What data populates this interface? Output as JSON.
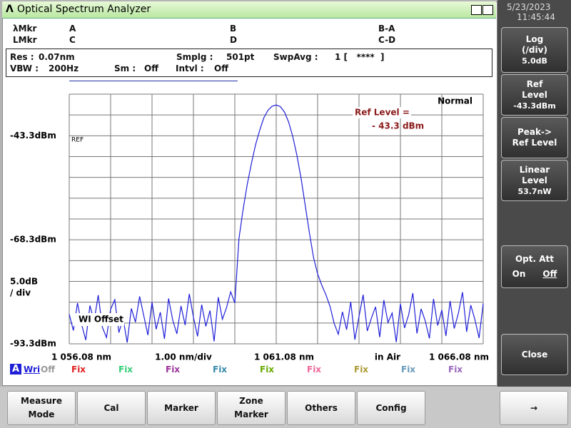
{
  "title_bar": {
    "title": "Optical Spectrum Analyzer",
    "icon": "Λ"
  },
  "markers": {
    "row1": [
      "λMkr",
      "A",
      "B",
      "B-A"
    ],
    "row2": [
      "LMkr",
      "C",
      "D",
      "C-D"
    ]
  },
  "settings": [
    [
      "Res :",
      "0.07nm"
    ],
    [
      "Smplg :",
      "501pt"
    ],
    [
      "SwpAvg :",
      "1 [   ****  ]"
    ],
    [
      "VBW :",
      "200Hz"
    ],
    [
      "Sm :",
      "Off"
    ],
    [
      "Intvl :",
      "Off"
    ]
  ],
  "chart_data": {
    "type": "line",
    "xlim": [
      1056.08,
      1066.08
    ],
    "xticks": [
      {
        "value": 1056.08,
        "label": "1 056.08 nm"
      },
      {
        "value": 1061.08,
        "label": "1 061.08 nm"
      },
      {
        "value": 1066.08,
        "label": "1 066.08 nm"
      }
    ],
    "ylim": [
      -93.3,
      -33.3
    ],
    "yticks": [
      {
        "value": -43.3,
        "label": "-43.3dBm"
      },
      {
        "value": -68.3,
        "label": "-68.3dBm"
      },
      {
        "value": -93.3,
        "label": "-93.3dBm"
      }
    ],
    "grid_divisions": {
      "x": 10,
      "y": 12
    },
    "x_span_label": "1.00 nm/div",
    "medium_label": "in Air",
    "scale_label": [
      "5.0dB",
      "/ div"
    ],
    "annotations": {
      "ref": "REF",
      "offset": "WI Offset",
      "mode": "Normal",
      "ref_level": "Ref Level =",
      "ref_level_value": "- 43.3 dBm"
    },
    "x": [
      1056.08,
      1056.18,
      1056.28,
      1056.38,
      1056.48,
      1056.58,
      1056.68,
      1056.78,
      1056.88,
      1056.98,
      1057.08,
      1057.18,
      1057.28,
      1057.38,
      1057.48,
      1057.58,
      1057.68,
      1057.78,
      1057.88,
      1057.98,
      1058.08,
      1058.18,
      1058.28,
      1058.38,
      1058.48,
      1058.58,
      1058.68,
      1058.78,
      1058.88,
      1058.98,
      1059.08,
      1059.18,
      1059.28,
      1059.38,
      1059.48,
      1059.58,
      1059.68,
      1059.78,
      1059.88,
      1059.98,
      1060.08,
      1060.18,
      1060.28,
      1060.38,
      1060.48,
      1060.58,
      1060.68,
      1060.78,
      1060.88,
      1060.98,
      1061.08,
      1061.18,
      1061.28,
      1061.38,
      1061.48,
      1061.58,
      1061.68,
      1061.78,
      1061.88,
      1061.98,
      1062.08,
      1062.18,
      1062.28,
      1062.38,
      1062.48,
      1062.58,
      1062.68,
      1062.78,
      1062.88,
      1062.98,
      1063.08,
      1063.18,
      1063.28,
      1063.38,
      1063.48,
      1063.58,
      1063.68,
      1063.78,
      1063.88,
      1063.98,
      1064.08,
      1064.18,
      1064.28,
      1064.38,
      1064.48,
      1064.58,
      1064.68,
      1064.78,
      1064.88,
      1064.98,
      1065.08,
      1065.18,
      1065.28,
      1065.38,
      1065.48,
      1065.58,
      1065.68,
      1065.78,
      1065.88,
      1065.98,
      1066.08
    ],
    "series": [
      {
        "name": "A",
        "color": "#1f1fd8",
        "values": [
          -86.2,
          -90.1,
          -83.5,
          -88.7,
          -92.4,
          -84.1,
          -87.9,
          -81.6,
          -89.3,
          -91.8,
          -85.0,
          -82.7,
          -90.6,
          -87.2,
          -93.0,
          -84.8,
          -88.1,
          -81.9,
          -86.5,
          -91.2,
          -83.3,
          -89.8,
          -85.7,
          -92.1,
          -82.4,
          -87.6,
          -90.9,
          -84.2,
          -88.8,
          -81.3,
          -86.9,
          -91.5,
          -83.9,
          -89.1,
          -85.3,
          -92.7,
          -82.1,
          -87.4,
          -84.6,
          -80.8,
          -83.5,
          -68,
          -61,
          -55,
          -50,
          -45.5,
          -42,
          -39,
          -37.2,
          -36.2,
          -35.9,
          -36.3,
          -37.6,
          -40,
          -43.5,
          -48,
          -53.5,
          -60,
          -66.5,
          -72.5,
          -76.5,
          -79.2,
          -81.5,
          -84.3,
          -88.4,
          -91.0,
          -85.6,
          -89.9,
          -83.2,
          -92.3,
          -86.7,
          -81.5,
          -90.2,
          -87.1,
          -84.4,
          -91.7,
          -82.8,
          -88.2,
          -85.9,
          -92.9,
          -83.7,
          -89.5,
          -86.3,
          -81.1,
          -90.8,
          -84.9,
          -87.8,
          -92.0,
          -82.5,
          -88.9,
          -85.2,
          -91.4,
          -83.0,
          -89.6,
          -86.0,
          -80.9,
          -90.4,
          -84.0,
          -87.5,
          -91.9,
          -83.6
        ]
      }
    ]
  },
  "traces": {
    "active": {
      "label": "A",
      "mode": "Wri",
      "state": "Off"
    },
    "fixed": [
      {
        "text": "Fix",
        "color": "#e02020"
      },
      {
        "text": "Fix",
        "color": "#33cc77"
      },
      {
        "text": "Fix",
        "color": "#993399"
      },
      {
        "text": "Fix",
        "color": "#3388aa"
      },
      {
        "text": "Fix",
        "color": "#66aa00"
      },
      {
        "text": "Fix",
        "color": "#ee6699"
      },
      {
        "text": "Fix",
        "color": "#aa9933"
      },
      {
        "text": "Fix",
        "color": "#6699bb"
      },
      {
        "text": "Fix",
        "color": "#9966bb"
      }
    ]
  },
  "side_panel": {
    "date": "5/23/2023",
    "time": "11:45:44",
    "buttons": [
      [
        "Log",
        "(/div)",
        "5.0dB"
      ],
      [
        "Ref",
        "Level",
        "-43.3dBm"
      ],
      [
        "Peak->",
        "Ref Level"
      ],
      [
        "Linear",
        "Level",
        "53.7nW"
      ]
    ],
    "opt_att": {
      "title": "Opt. Att",
      "on": "On",
      "off": "Off"
    },
    "close": "Close"
  },
  "bottom_bar": [
    [
      "Measure",
      "Mode"
    ],
    [
      "Cal"
    ],
    [
      "Marker"
    ],
    [
      "Zone",
      "Marker"
    ],
    [
      "Others"
    ],
    [
      "Config"
    ],
    [
      "→"
    ]
  ]
}
